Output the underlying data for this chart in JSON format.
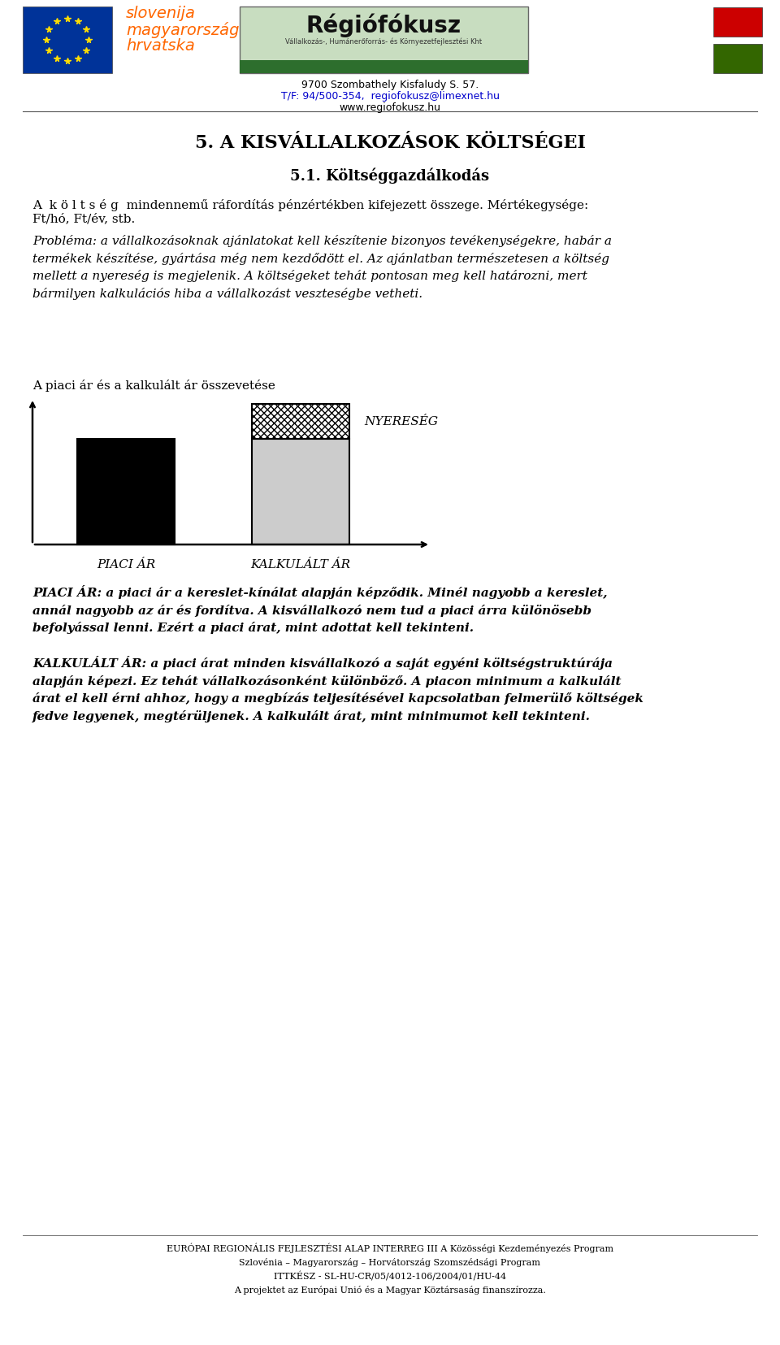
{
  "title_main": "5. A KISVÁLLALKOZÁSOK KÖLTSÉGEI",
  "title_sub": "5.1. Költséggazdálkodás",
  "line1_part1": "A  k ö l t s é g  mindennemű ráfordítás pénzértékben kifejezett összege. Mértékegysége:",
  "line1_part2": "Ft/hó, Ft/év, stb.",
  "italic_para": "Probléma: a vállalkozásoknak ajánlatokat kell készítenie bizonyos tevékenységekre, habár a\ntermékek készítése, gyártása még nem kezdődött el. Az ajánlatban természetesen a költség\nmellett a nyereség is megjelenik. A költségeket tehát pontosan meg kell határozni, mert\nbármilyen kalkulációs hiba a vállalkozást veszteségbe vetheti.",
  "chart_title": "A piaci ár és a kalkulált ár összevetése",
  "bar1_label": "PIACI ÁR",
  "bar2_label": "KALKULÁLT ÁR",
  "nyereseg_label": "NYERESÉG",
  "piaci_ar_full": "PIACI ÁR: a piaci ár a kereslet-kínálat alapján képződik. Minél nagyobb a kereslet,\nannál nagyobb az ár és fordítva. A kisvállalkozó nem tud a piaci árra különösebb\nbefolyással lenni. Ezért a piaci árat, mint adottat kell tekinteni.",
  "kalkulalt_ar_full": "KALKULÁLT ÁR: a piaci árat minden kisvállalkozó a saját egyéni költségstruktúrája\nalapján képezi. Ez tehát vállalkozásonként különböző. A piacon minimum a kalkulált\nárat el kell érni ahhoz, hogy a megbízás teljesítésével kapcsolatban felmerülő költségek\nfedve legyenek, megtérüljenek. A kalkulált árat, mint minimumot kell tekinteni.",
  "footer_text": "EURÓPAI REGIONÁLIS FEJLESZTÉSI ALAP INTERREG III A Közösségi Kezdeményezés Program\nSzlovénia – Magyarország – Horvátország Szomszédsági Program\nITTKÉSZ - SL-HU-CR/05/4012-106/2004/01/HU-44\nA projektet az Európai Unió és a Magyar Köztársaság finanszírozza.",
  "address_line1": "9700 Szombathely Kisfaludy S. 57.",
  "address_line2": "T/F: 94/500-354,  regiofokusz@limexnet.hu",
  "address_line3": "www.regiofokusz.hu",
  "bg_color": "#ffffff",
  "text_color": "#000000",
  "eu_flag_color": "#003399",
  "star_color": "#FFDD00",
  "orange_text_color": "#FF6600",
  "red_flag_color": "#CC0000",
  "green_flag_color": "#336600",
  "rf_bg_color": "#c8ddc0",
  "rf_border_color": "#666666",
  "rf_green_color": "#2d6e2d",
  "link_color": "#0000CC"
}
